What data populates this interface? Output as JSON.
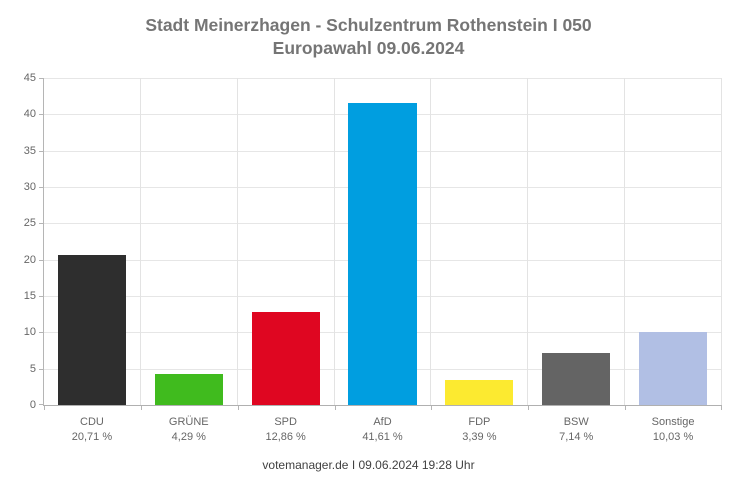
{
  "header": {
    "title_line1": "Stadt Meinerzhagen - Schulzentrum Rothenstein I 050",
    "title_line2": "Europawahl 09.06.2024"
  },
  "footer": {
    "text": "votemanager.de I 09.06.2024 19:28 Uhr"
  },
  "chart_data": {
    "type": "bar",
    "title": "Stadt Meinerzhagen - Schulzentrum Rothenstein I 050",
    "subtitle": "Europawahl 09.06.2024",
    "categories": [
      "CDU",
      "GRÜNE",
      "SPD",
      "AfD",
      "FDP",
      "BSW",
      "Sonstige"
    ],
    "values": [
      20.71,
      4.29,
      12.86,
      41.61,
      3.39,
      7.14,
      10.03
    ],
    "value_labels": [
      "20,71 %",
      "4,29 %",
      "12,86 %",
      "41,61 %",
      "3,39 %",
      "7,14 %",
      "10,03 %"
    ],
    "colors": [
      "#2e2e2e",
      "#40bb1e",
      "#df0621",
      "#009ee0",
      "#fcea30",
      "#646464",
      "#b1bfe4"
    ],
    "xlabel": "",
    "ylabel": "",
    "ylim": [
      0,
      45
    ],
    "ytick_step": 5,
    "grid": "both",
    "legend": "none",
    "grid_color": "#e6e6e6",
    "axis_color": "#b5b5b5",
    "label_color": "#666666",
    "title_color": "#757575"
  }
}
